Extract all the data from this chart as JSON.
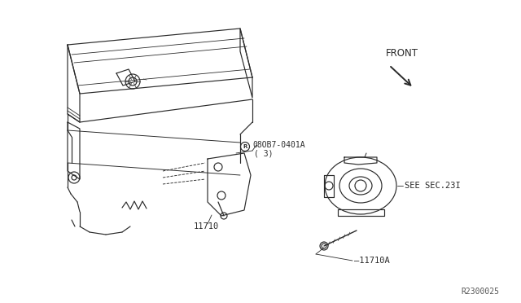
{
  "bg_color": "#ffffff",
  "line_color": "#2a2a2a",
  "diagram_id": "R2300025",
  "labels": {
    "part_code": "08OB7-0401A",
    "qty": "( 3)",
    "part1": "11710",
    "part2": "11710A",
    "see_sec": "SEE SEC.23I",
    "front": "FRONT"
  },
  "lw": 0.85,
  "font_size_label": 7.5,
  "font_size_small": 7.0,
  "font_size_id": 7.0
}
